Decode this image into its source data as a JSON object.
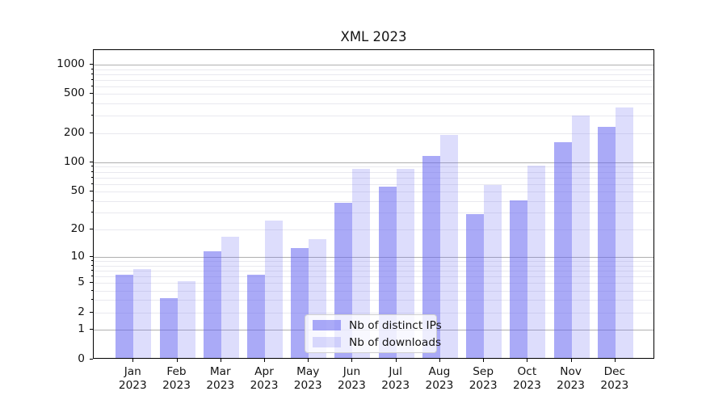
{
  "title": "XML 2023",
  "colors": {
    "bar_ips": "rgba(100,100,240,0.55)",
    "bar_downloads": "rgba(100,100,240,0.22)",
    "grid_major": "#b0b0b0",
    "grid_minor": "#e9e9ef",
    "axis": "#000000"
  },
  "chart_data": {
    "type": "bar",
    "title": "XML 2023",
    "categories": [
      "Jan 2023",
      "Feb 2023",
      "Mar 2023",
      "Apr 2023",
      "May 2023",
      "Jun 2023",
      "Jul 2023",
      "Aug 2023",
      "Sep 2023",
      "Oct 2023",
      "Nov 2023",
      "Dec 2023"
    ],
    "months": [
      "Jan",
      "Feb",
      "Mar",
      "Apr",
      "May",
      "Jun",
      "Jul",
      "Aug",
      "Sep",
      "Oct",
      "Nov",
      "Dec"
    ],
    "year": "2023",
    "series": [
      {
        "name": "Nb of distinct IPs",
        "values": [
          6,
          3,
          11,
          6,
          12,
          37,
          54,
          112,
          28,
          39,
          155,
          224
        ]
      },
      {
        "name": "Nb of downloads",
        "values": [
          7,
          5,
          16,
          24,
          15,
          83,
          83,
          185,
          56,
          89,
          292,
          350
        ]
      }
    ],
    "xlabel": "",
    "ylabel": "",
    "yscale": "log1p",
    "ylim": [
      0,
      1400
    ],
    "y_ticks": [
      0,
      1,
      2,
      5,
      10,
      20,
      50,
      100,
      200,
      500,
      1000
    ],
    "grid": "both",
    "legend_position": "lower center"
  }
}
